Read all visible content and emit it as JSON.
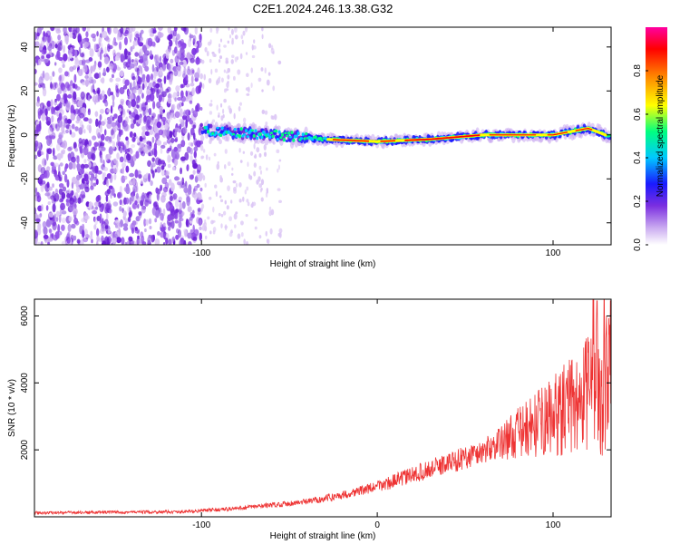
{
  "title": "C2E1.2024.246.13.38.G32",
  "chart_data": [
    {
      "type": "heatmap",
      "xlabel": "Height of straight line (km)",
      "ylabel": "Frequency (Hz)",
      "xlim": [
        -195,
        133
      ],
      "ylim": [
        -50,
        49
      ],
      "xticks": [
        -100,
        100
      ],
      "xtick_labels": [
        "-100",
        "100"
      ],
      "yticks": [
        -40,
        -20,
        0,
        20,
        40
      ],
      "ytick_labels": [
        "-40",
        "-20",
        "0",
        "20",
        "40"
      ],
      "colorbar": {
        "label": "Normalized spectral amplitude",
        "range": [
          0,
          1
        ],
        "ticks": [
          0,
          0.2,
          0.4,
          0.6,
          0.8
        ],
        "tick_labels": [
          "0.0",
          "0.2",
          "0.4",
          "0.6",
          "0.8"
        ],
        "colors": [
          "#ffffff",
          "#c9a8f0",
          "#7a2ee0",
          "#1a1aff",
          "#00c8ff",
          "#00ff80",
          "#ffff00",
          "#ff8000",
          "#ff0000",
          "#ff00a0"
        ]
      },
      "ridge": [
        {
          "x": -100,
          "freq": 2
        },
        {
          "x": -60,
          "freq": 0
        },
        {
          "x": -30,
          "freq": -2
        },
        {
          "x": 0,
          "freq": -3
        },
        {
          "x": 30,
          "freq": -2
        },
        {
          "x": 60,
          "freq": 0
        },
        {
          "x": 100,
          "freq": 0
        },
        {
          "x": 120,
          "freq": 3
        },
        {
          "x": 133,
          "freq": -1
        }
      ]
    },
    {
      "type": "line",
      "xlabel": "Height of straight line (km)",
      "ylabel": "SNR (10 * v/v)",
      "xlim": [
        -195,
        133
      ],
      "ylim": [
        0,
        6500
      ],
      "xticks": [
        -100,
        0,
        100
      ],
      "xtick_labels": [
        "-100",
        "0",
        "100"
      ],
      "yticks": [
        2000,
        4000,
        6000
      ],
      "ytick_labels": [
        "2000",
        "4000",
        "6000"
      ],
      "series_color": "#ee3333",
      "trend": [
        {
          "x": -195,
          "y": 120
        },
        {
          "x": -110,
          "y": 150
        },
        {
          "x": -80,
          "y": 250
        },
        {
          "x": -40,
          "y": 450
        },
        {
          "x": -20,
          "y": 650
        },
        {
          "x": 0,
          "y": 900
        },
        {
          "x": 20,
          "y": 1250
        },
        {
          "x": 40,
          "y": 1600
        },
        {
          "x": 60,
          "y": 1950
        },
        {
          "x": 80,
          "y": 2500
        },
        {
          "x": 100,
          "y": 3000
        },
        {
          "x": 120,
          "y": 3600
        },
        {
          "x": 133,
          "y": 4200
        }
      ],
      "peak": {
        "x": 125,
        "y": 6450
      }
    }
  ]
}
